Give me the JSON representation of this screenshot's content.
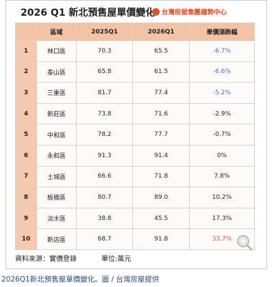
{
  "header": {
    "title": "2026 Q1 新北預售屋單價變化",
    "logo": "台灣房屋集團趨勢中心"
  },
  "table": {
    "columns": [
      "",
      "區域",
      "2025Q1",
      "2026Q1",
      "單價漲跌幅"
    ],
    "rows": [
      [
        "1",
        "林口區",
        "70.3",
        "65.5",
        "-6.7%"
      ],
      [
        "2",
        "泰山區",
        "65.8",
        "61.5",
        "-6.6%"
      ],
      [
        "3",
        "三重區",
        "81.7",
        "77.4",
        "-5.2%"
      ],
      [
        "4",
        "新莊區",
        "73.8",
        "71.6",
        "-2.9%"
      ],
      [
        "5",
        "中和區",
        "78.2",
        "77.7",
        "-0.7%"
      ],
      [
        "6",
        "永和區",
        "91.3",
        "91.4",
        "0%"
      ],
      [
        "7",
        "土城區",
        "66.6",
        "71.8",
        "7.8%"
      ],
      [
        "8",
        "板橋區",
        "80.7",
        "89.0",
        "10.2%"
      ],
      [
        "9",
        "淡水區",
        "38.8",
        "45.5",
        "17.3%"
      ],
      [
        "10",
        "新店區",
        "68.7",
        "91.8",
        "33.7%"
      ]
    ]
  },
  "footer": {
    "source": "資料來源：實價登錄",
    "unit": "單位:萬元"
  },
  "caption": "2026Q1新北預售屋單價變化。圖 / 台灣房屋提供"
}
